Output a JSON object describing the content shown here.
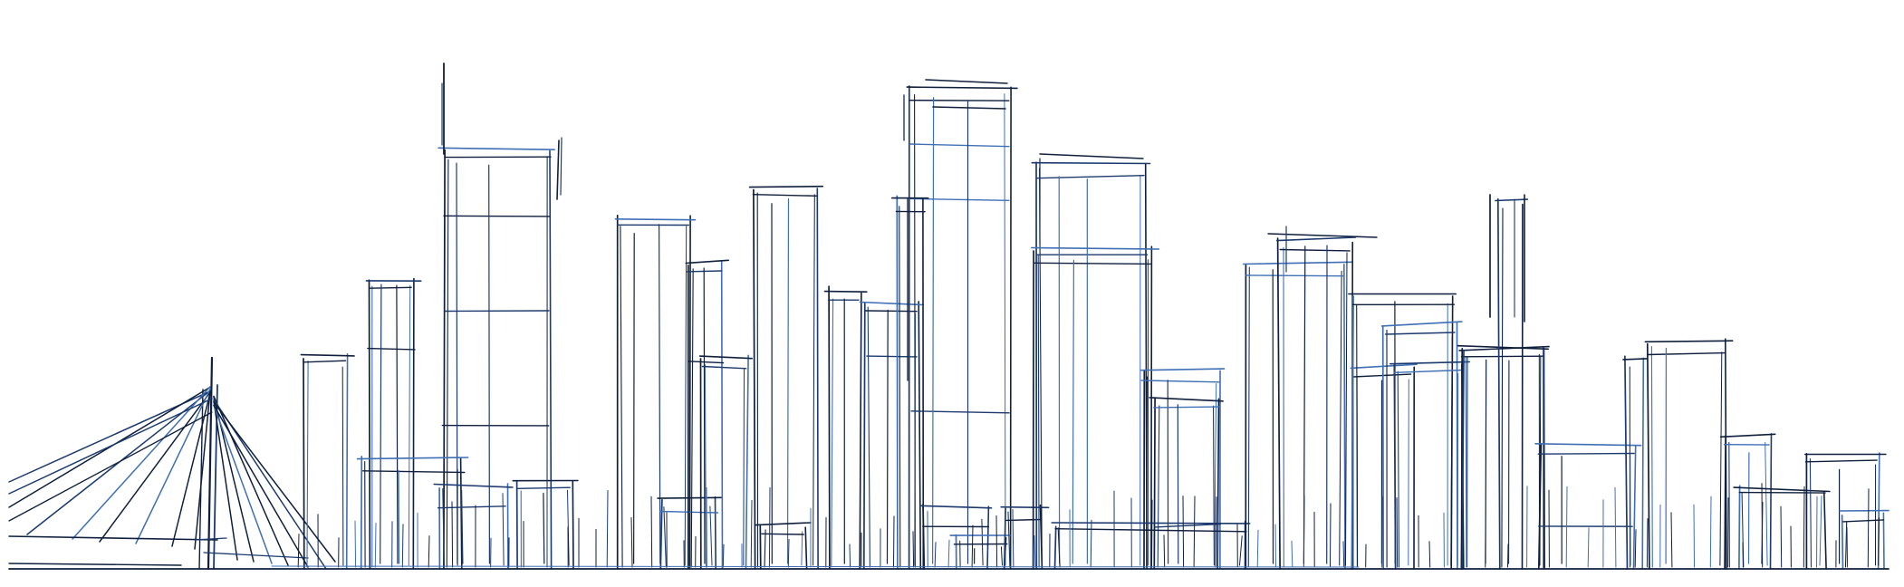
{
  "scene": {
    "subject": "city-skyline-line-sketch",
    "colors": {
      "background": "#ffffff",
      "ink_dark": "#0f1f3d",
      "ink_mid": "#1c3a6e",
      "ink_accent": "#3f6fb5"
    }
  }
}
